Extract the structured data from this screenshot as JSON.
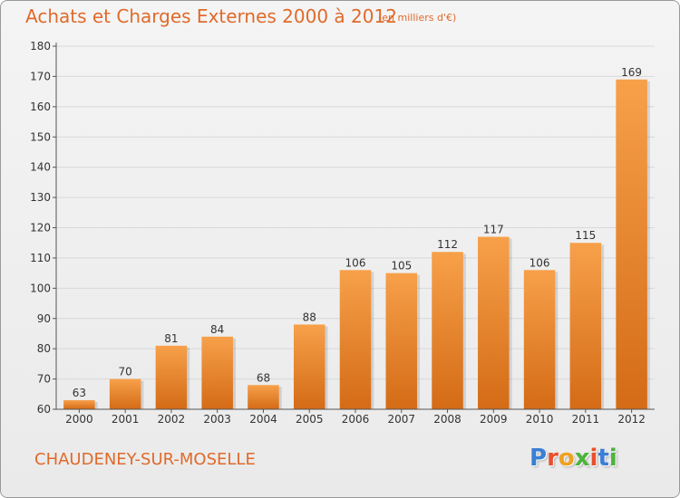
{
  "header": {
    "title": "Achats et Charges Externes 2000 à 2012",
    "subtitle": "(en milliers d'€)"
  },
  "footer": {
    "location": "CHAUDENEY-SUR-MOSELLE",
    "brand": {
      "letters": [
        "P",
        "r",
        "o",
        "x",
        "i",
        "t",
        "i"
      ],
      "colors": [
        "#3a7fd5",
        "#e8502c",
        "#f0a020",
        "#4db33d",
        "#e8502c",
        "#3a7fd5",
        "#4db33d"
      ]
    }
  },
  "colors": {
    "accent": "#e06a2a",
    "bar_top": "#f7a04a",
    "bar_bottom": "#d46b16",
    "grid": "#d8d8d8",
    "axis": "#555555"
  },
  "chart_data": {
    "type": "bar",
    "title": "Achats et Charges Externes 2000 à 2012",
    "subtitle": "(en milliers d'€)",
    "categories": [
      "2000",
      "2001",
      "2002",
      "2003",
      "2004",
      "2005",
      "2006",
      "2007",
      "2008",
      "2009",
      "2010",
      "2011",
      "2012"
    ],
    "values": [
      63,
      70,
      81,
      84,
      68,
      88,
      106,
      105,
      112,
      117,
      106,
      115,
      169
    ],
    "ylim": [
      60,
      180
    ],
    "yticks": [
      60,
      70,
      80,
      90,
      100,
      110,
      120,
      130,
      140,
      150,
      160,
      170,
      180
    ],
    "xlabel": "",
    "ylabel": "",
    "grid": true,
    "data_labels": true
  }
}
